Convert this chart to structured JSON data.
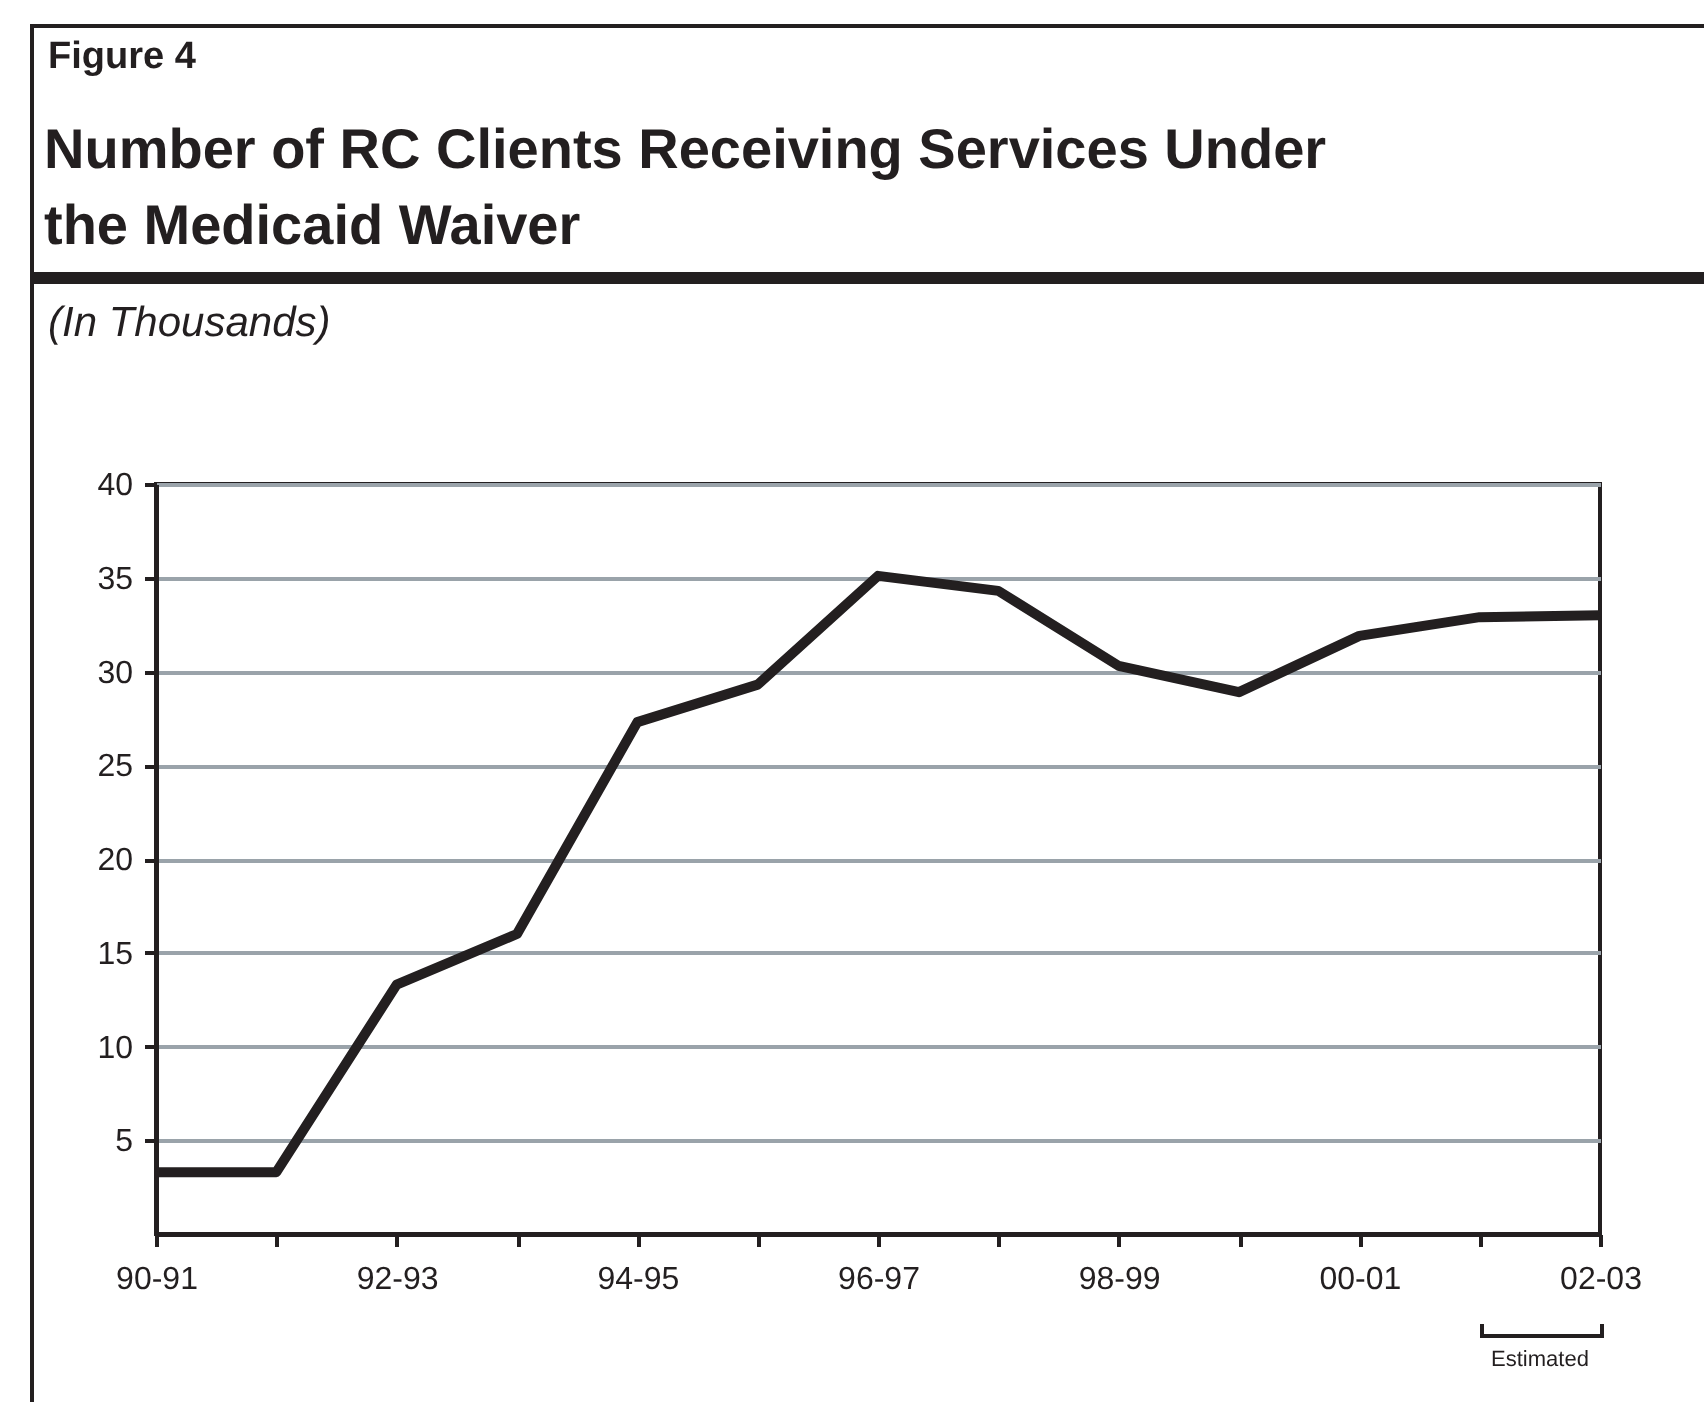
{
  "chart_data": {
    "type": "line",
    "title": "Number of RC Clients Receiving Services Under the Medicaid Waiver",
    "subtitle": "(In Thousands)",
    "annotations": [
      "Figure 4",
      "Estimated"
    ],
    "categories": [
      "90-91",
      null,
      "92-93",
      null,
      "94-95",
      null,
      "96-97",
      null,
      "98-99",
      null,
      "00-01",
      null,
      "02-03"
    ],
    "series": [
      {
        "color": "#231f20",
        "values": [
          3.3,
          3.3,
          13.3,
          16.0,
          27.3,
          29.3,
          35.1,
          34.3,
          30.3,
          28.9,
          31.9,
          32.9,
          33.0
        ]
      }
    ],
    "ylim": [
      0,
      40
    ],
    "yticks": [
      5,
      10,
      15,
      20,
      25,
      30,
      35,
      40
    ],
    "grid": "y",
    "marker": "none",
    "line_style": "solid"
  }
}
